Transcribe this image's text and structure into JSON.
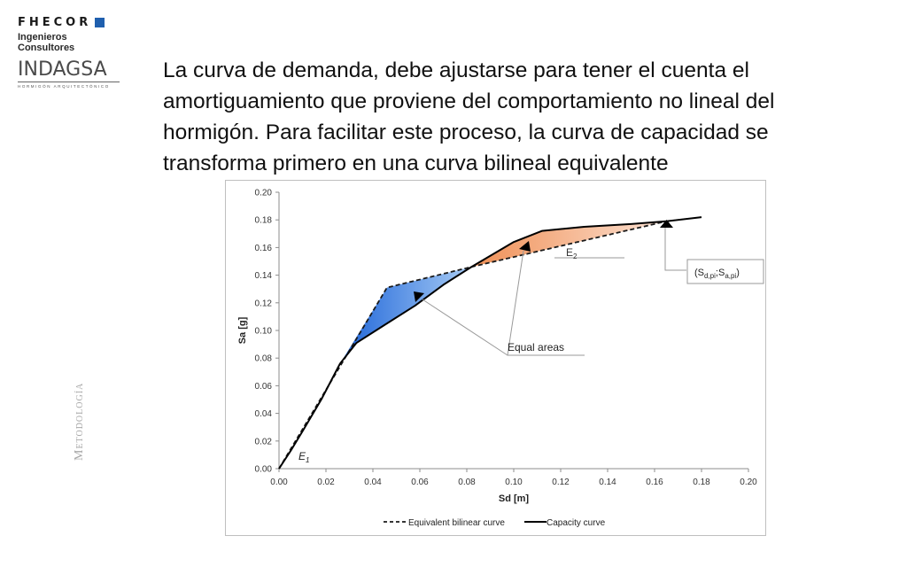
{
  "logo": {
    "company": "FHECOR",
    "tagline": "Ingenieros Consultores",
    "partner": "INDAGSA",
    "partner_sub": "HORMIGÓN ARQUITECTÓNICO",
    "accent_color": "#1f5fae"
  },
  "side_label": "Metodología",
  "heading": "La curva de demanda, debe ajustarse para tener el cuenta el amortiguamiento que proviene del comportamiento no lineal del hormigón. Para facilitar este proceso, la curva de capacidad se transforma primero en una curva bilineal equivalente",
  "chart_data": {
    "type": "line",
    "xlabel": "Sd [m]",
    "ylabel": "Sa [g]",
    "xlim": [
      0,
      0.2
    ],
    "ylim": [
      0,
      0.2
    ],
    "xticks": [
      "0.00",
      "0.02",
      "0.04",
      "0.06",
      "0.08",
      "0.10",
      "0.12",
      "0.14",
      "0.16",
      "0.18",
      "0.20"
    ],
    "yticks": [
      "0.00",
      "0.02",
      "0.04",
      "0.06",
      "0.08",
      "0.10",
      "0.12",
      "0.14",
      "0.16",
      "0.18",
      "0.20"
    ],
    "grid": false,
    "legend_position": "bottom",
    "series": [
      {
        "name": "Equivalent bilinear curve",
        "style": "dashed",
        "color": "#1a1a1a",
        "x": [
          0.0,
          0.046,
          0.082,
          0.165
        ],
        "y": [
          0.0,
          0.131,
          0.146,
          0.179
        ]
      },
      {
        "name": "Capacity curve",
        "style": "solid",
        "color": "#000000",
        "x": [
          0.0,
          0.005,
          0.01,
          0.018,
          0.026,
          0.033,
          0.045,
          0.058,
          0.07,
          0.082,
          0.092,
          0.1,
          0.112,
          0.13,
          0.15,
          0.165,
          0.18
        ],
        "y": [
          0.0,
          0.013,
          0.027,
          0.05,
          0.076,
          0.091,
          0.104,
          0.118,
          0.133,
          0.146,
          0.156,
          0.164,
          0.172,
          0.175,
          0.177,
          0.179,
          0.182
        ]
      }
    ],
    "areas": [
      {
        "label": "E1",
        "color": "#3b7fe0",
        "x": [
          0.026,
          0.046,
          0.082,
          0.07,
          0.058,
          0.045,
          0.033
        ],
        "y": [
          0.076,
          0.131,
          0.146,
          0.133,
          0.118,
          0.104,
          0.091
        ]
      },
      {
        "label": "E2",
        "color": "#f0a070",
        "x": [
          0.082,
          0.092,
          0.1,
          0.112,
          0.13,
          0.15,
          0.165
        ],
        "y": [
          0.146,
          0.156,
          0.164,
          0.172,
          0.175,
          0.177,
          0.179
        ]
      }
    ],
    "annotations": {
      "e1": "E",
      "e1_sub": "1",
      "e2": "E",
      "e2_sub": "2",
      "equal_areas": "Equal areas",
      "point_open": "(S",
      "point_sub1": "d,pi",
      "point_sep": ";S",
      "point_sub2": "a,pi",
      "point_close": ")"
    }
  }
}
